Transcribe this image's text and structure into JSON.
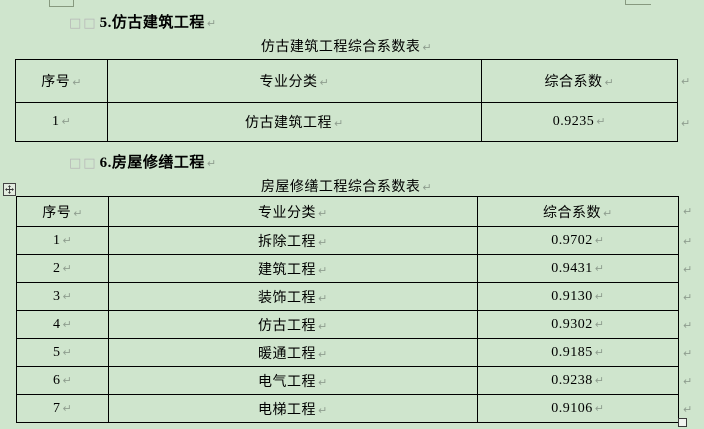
{
  "style": {
    "page_background": "#cfe5cd",
    "table_border_color": "#000000",
    "formatting_mark_color": "#8f9e8f",
    "space_mark_color": "#b6b6b6",
    "remnant_border_color": "#87997f"
  },
  "marks": {
    "paragraph": "↵",
    "fullwidth_spaces": "□□"
  },
  "section5": {
    "heading": "5.仿古建筑工程",
    "table_title": "仿古建筑工程综合系数表"
  },
  "section6": {
    "heading": "6.房屋修缮工程",
    "table_title": "房屋修缮工程综合系数表"
  },
  "table1": {
    "headers": [
      "序号",
      "专业分类",
      "综合系数"
    ],
    "rows": [
      [
        "1",
        "仿古建筑工程",
        "0.9235"
      ]
    ]
  },
  "table2": {
    "headers": [
      "序号",
      "专业分类",
      "综合系数"
    ],
    "rows": [
      [
        "1",
        "拆除工程",
        "0.9702"
      ],
      [
        "2",
        "建筑工程",
        "0.9431"
      ],
      [
        "3",
        "装饰工程",
        "0.9130"
      ],
      [
        "4",
        "仿古工程",
        "0.9302"
      ],
      [
        "5",
        "暖通工程",
        "0.9185"
      ],
      [
        "6",
        "电气工程",
        "0.9238"
      ],
      [
        "7",
        "电梯工程",
        "0.9106"
      ]
    ]
  }
}
